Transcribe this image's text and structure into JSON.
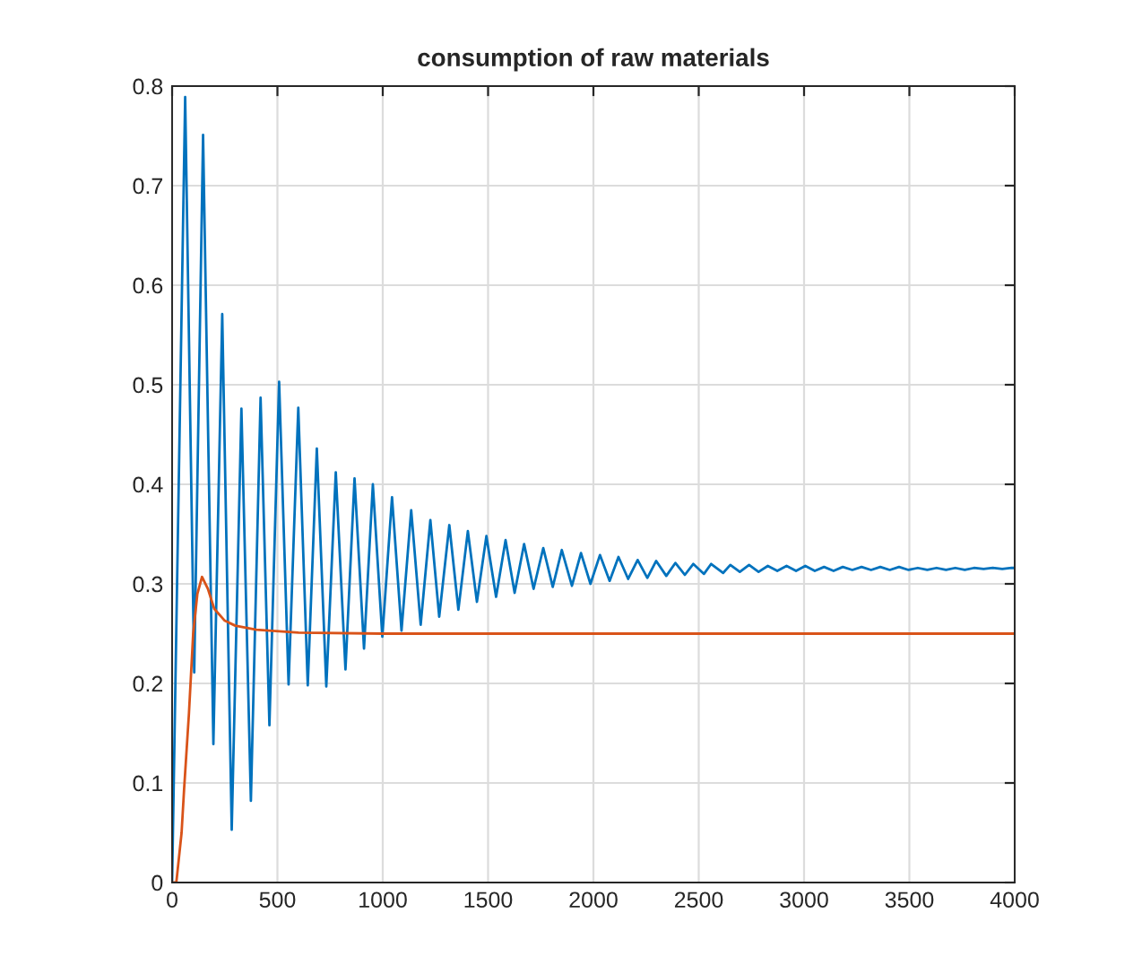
{
  "chart_data": {
    "type": "line",
    "title": "consumption of raw materials",
    "series": [
      {
        "color": "#0072bd",
        "x": [
          0,
          62,
          105,
          147,
          196,
          238,
          283,
          329,
          374,
          420,
          462,
          508,
          553,
          599,
          644,
          687,
          732,
          777,
          823,
          866,
          911,
          953,
          998,
          1044,
          1089,
          1135,
          1180,
          1226,
          1268,
          1316,
          1359,
          1404,
          1447,
          1492,
          1538,
          1583,
          1626,
          1671,
          1716,
          1762,
          1807,
          1850,
          1898,
          1941,
          1986,
          2031,
          2077,
          2119,
          2165,
          2210,
          2256,
          2298,
          2346,
          2389,
          2434,
          2474,
          2525,
          2559,
          2616,
          2650,
          2695,
          2739,
          2784,
          2828,
          2873,
          2917,
          2962,
          3006,
          3051,
          3095,
          3140,
          3184,
          3229,
          3273,
          3318,
          3362,
          3407,
          3451,
          3496,
          3540,
          3585,
          3629,
          3674,
          3718,
          3763,
          3807,
          3852,
          3896,
          3941,
          3985,
          4000
        ],
        "values": [
          0,
          0.789,
          0.211,
          0.751,
          0.139,
          0.571,
          0.053,
          0.476,
          0.082,
          0.487,
          0.158,
          0.503,
          0.199,
          0.477,
          0.198,
          0.436,
          0.197,
          0.412,
          0.214,
          0.406,
          0.235,
          0.4,
          0.247,
          0.387,
          0.253,
          0.374,
          0.259,
          0.364,
          0.267,
          0.359,
          0.274,
          0.353,
          0.282,
          0.348,
          0.287,
          0.344,
          0.291,
          0.34,
          0.295,
          0.336,
          0.297,
          0.334,
          0.298,
          0.331,
          0.3,
          0.329,
          0.303,
          0.327,
          0.305,
          0.324,
          0.306,
          0.323,
          0.308,
          0.321,
          0.309,
          0.32,
          0.31,
          0.32,
          0.311,
          0.319,
          0.312,
          0.319,
          0.312,
          0.318,
          0.313,
          0.318,
          0.313,
          0.318,
          0.313,
          0.317,
          0.313,
          0.317,
          0.314,
          0.317,
          0.314,
          0.317,
          0.314,
          0.317,
          0.314,
          0.316,
          0.314,
          0.316,
          0.314,
          0.316,
          0.314,
          0.316,
          0.315,
          0.316,
          0.315,
          0.316,
          0.316
        ]
      },
      {
        "color": "#d95319",
        "x": [
          0,
          20,
          45,
          57,
          80,
          100,
          120,
          142,
          170,
          200,
          250,
          300,
          400,
          600,
          1000,
          4000
        ],
        "values": [
          0,
          0,
          0.05,
          0.094,
          0.17,
          0.25,
          0.29,
          0.307,
          0.295,
          0.275,
          0.263,
          0.258,
          0.254,
          0.251,
          0.25,
          0.25
        ]
      }
    ],
    "xlim": [
      0,
      4000
    ],
    "xticks": [
      0,
      500,
      1000,
      1500,
      2000,
      2500,
      3000,
      3500,
      4000
    ],
    "ylim": [
      0,
      0.8
    ],
    "yticks": [
      0,
      0.1,
      0.2,
      0.3,
      0.4,
      0.5,
      0.6,
      0.7,
      0.8
    ],
    "grid": true,
    "legend": false
  }
}
